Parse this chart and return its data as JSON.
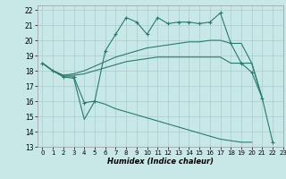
{
  "xlabel": "Humidex (Indice chaleur)",
  "ylabel": "",
  "xlim": [
    -0.5,
    23
  ],
  "ylim": [
    13,
    22.3
  ],
  "yticks": [
    13,
    14,
    15,
    16,
    17,
    18,
    19,
    20,
    21,
    22
  ],
  "xticks": [
    0,
    1,
    2,
    3,
    4,
    5,
    6,
    7,
    8,
    9,
    10,
    11,
    12,
    13,
    14,
    15,
    16,
    17,
    18,
    19,
    20,
    21,
    22,
    23
  ],
  "line_color": "#2a7a6a",
  "bg_color": "#c8e8e8",
  "grid_color": "#aacccc",
  "line1_x": [
    0,
    1,
    2,
    3,
    4,
    5,
    6,
    7,
    8,
    9,
    10,
    11,
    12,
    13,
    14,
    15,
    16,
    17,
    18,
    19,
    20,
    21,
    22
  ],
  "line1_y": [
    18.5,
    18.0,
    17.6,
    17.6,
    15.9,
    16.0,
    19.3,
    20.4,
    21.5,
    21.2,
    20.4,
    21.5,
    21.1,
    21.2,
    21.2,
    21.1,
    21.2,
    21.8,
    19.8,
    18.5,
    17.9,
    16.2,
    13.3
  ],
  "line2_x": [
    0,
    1,
    2,
    3,
    4,
    5,
    6,
    7,
    8,
    9,
    10,
    11,
    12,
    13,
    14,
    15,
    16,
    17,
    18,
    19,
    20,
    21
  ],
  "line2_y": [
    18.5,
    18.0,
    17.7,
    17.8,
    18.0,
    18.3,
    18.6,
    18.9,
    19.1,
    19.3,
    19.5,
    19.6,
    19.7,
    19.8,
    19.9,
    19.9,
    20.0,
    20.0,
    19.8,
    19.8,
    18.5,
    16.2
  ],
  "line3_x": [
    0,
    1,
    2,
    3,
    4,
    5,
    6,
    7,
    8,
    9,
    10,
    11,
    12,
    13,
    14,
    15,
    16,
    17,
    18,
    19,
    20,
    21
  ],
  "line3_y": [
    18.5,
    18.0,
    17.7,
    17.7,
    17.8,
    18.0,
    18.2,
    18.4,
    18.6,
    18.7,
    18.8,
    18.9,
    18.9,
    18.9,
    18.9,
    18.9,
    18.9,
    18.9,
    18.5,
    18.5,
    18.5,
    16.2
  ],
  "line4_x": [
    0,
    1,
    2,
    3,
    4,
    5,
    6,
    7,
    8,
    9,
    10,
    11,
    12,
    13,
    14,
    15,
    16,
    17,
    18,
    19,
    20
  ],
  "line4_y": [
    18.5,
    18.0,
    17.6,
    17.5,
    14.8,
    16.0,
    15.8,
    15.5,
    15.3,
    15.1,
    14.9,
    14.7,
    14.5,
    14.3,
    14.1,
    13.9,
    13.7,
    13.5,
    13.4,
    13.3,
    13.3
  ]
}
